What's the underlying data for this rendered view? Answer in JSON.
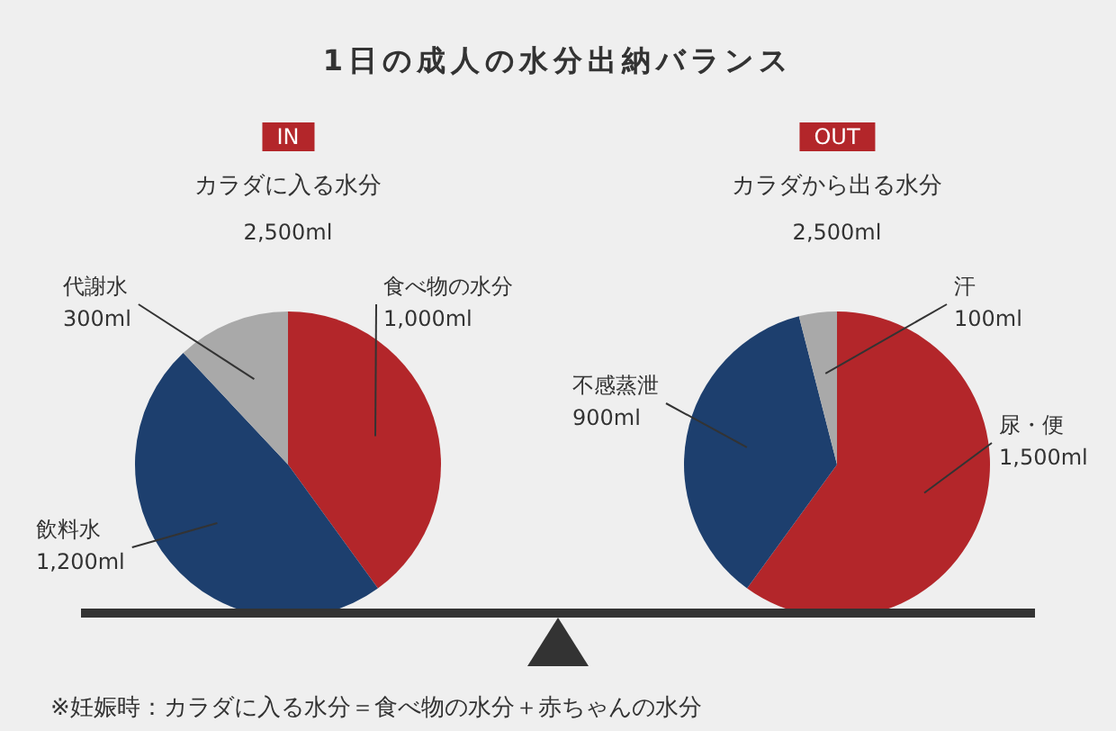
{
  "chart_data": [
    {
      "type": "pie",
      "title": "カラダに入る水分",
      "subtitle": "2,500ml",
      "annotations": [
        "IN",
        "1日の成人の水分出納バランス"
      ],
      "categories": [
        "食べ物の水分",
        "飲料水",
        "代謝水"
      ],
      "values": [
        1000,
        1200,
        300
      ],
      "value_labels": [
        "1,000ml",
        "1,200ml",
        "300ml"
      ],
      "colors": [
        "#b3262a",
        "#1d3f6e",
        "#a9a9a9"
      ],
      "legend": false
    },
    {
      "type": "pie",
      "title": "カラダから出る水分",
      "subtitle": "2,500ml",
      "annotations": [
        "OUT",
        "※妊娠時：カラダに入る水分＝食べ物の水分＋赤ちゃんの水分"
      ],
      "categories": [
        "尿・便",
        "不感蒸泄",
        "汗"
      ],
      "values": [
        1500,
        900,
        100
      ],
      "value_labels": [
        "1,500ml",
        "900ml",
        "100ml"
      ],
      "colors": [
        "#b3262a",
        "#1d3f6e",
        "#a9a9a9"
      ],
      "legend": false
    }
  ]
}
